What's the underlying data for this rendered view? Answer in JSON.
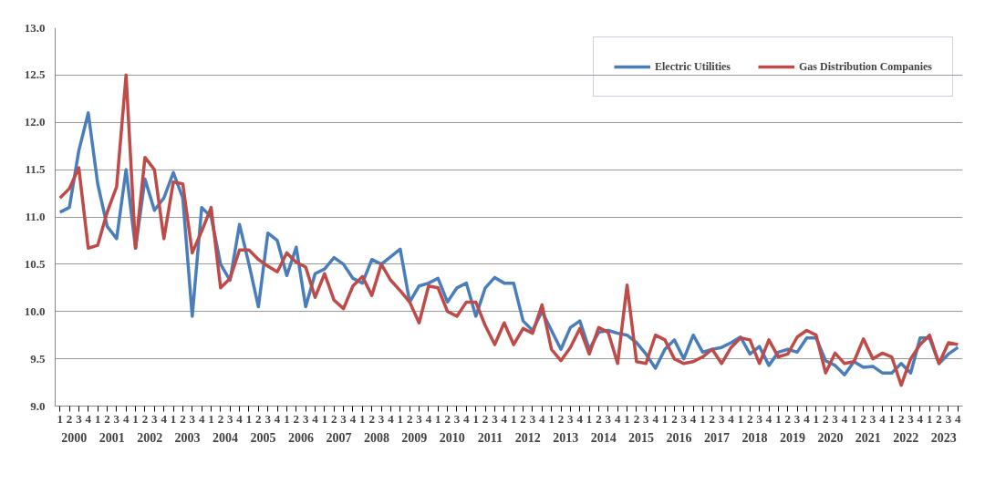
{
  "chart_data": {
    "type": "line",
    "categories": [
      "1",
      "2",
      "3",
      "4",
      "1",
      "2",
      "3",
      "4",
      "1",
      "2",
      "3",
      "4",
      "1",
      "2",
      "3",
      "4",
      "1",
      "2",
      "3",
      "4",
      "1",
      "2",
      "3",
      "4",
      "1",
      "2",
      "3",
      "4",
      "1",
      "2",
      "3",
      "4",
      "1",
      "2",
      "3",
      "4",
      "1",
      "2",
      "3",
      "4",
      "1",
      "2",
      "3",
      "4",
      "1",
      "2",
      "3",
      "4",
      "1",
      "2",
      "3",
      "4",
      "1",
      "2",
      "3",
      "4",
      "1",
      "2",
      "3",
      "4",
      "1",
      "2",
      "3",
      "4",
      "1",
      "2",
      "3",
      "4",
      "1",
      "2",
      "3",
      "4",
      "1",
      "2",
      "3",
      "4",
      "1",
      "2",
      "3",
      "4",
      "1",
      "2",
      "3",
      "4",
      "1",
      "2",
      "3",
      "4",
      "1",
      "2",
      "3",
      "4",
      "1",
      "2",
      "3",
      "4"
    ],
    "annotations": [
      "2000",
      "2001",
      "2002",
      "2003",
      "2004",
      "2005",
      "2006",
      "2007",
      "2008",
      "2009",
      "2010",
      "2011",
      "2012",
      "2013",
      "2014",
      "2015",
      "2016",
      "2017",
      "2018",
      "2019",
      "2020",
      "2021",
      "2022",
      "2023"
    ],
    "series": [
      {
        "name": "Electric Utilities",
        "color": "#4a7ebb",
        "values": [
          11.05,
          11.1,
          11.7,
          12.1,
          11.35,
          10.9,
          10.77,
          11.5,
          10.67,
          11.4,
          11.07,
          11.2,
          11.47,
          11.2,
          9.95,
          11.1,
          11.0,
          10.5,
          10.33,
          10.92,
          10.5,
          10.05,
          10.83,
          10.75,
          10.38,
          10.68,
          10.05,
          10.4,
          10.45,
          10.57,
          10.5,
          10.35,
          10.3,
          10.55,
          10.5,
          10.58,
          10.66,
          10.1,
          10.27,
          10.3,
          10.35,
          10.1,
          10.25,
          10.3,
          9.95,
          10.25,
          10.36,
          10.3,
          10.3,
          9.9,
          9.8,
          10.0,
          9.8,
          9.6,
          9.83,
          9.9,
          9.6,
          9.78,
          9.8,
          9.77,
          9.75,
          9.67,
          9.55,
          9.4,
          9.6,
          9.7,
          9.5,
          9.75,
          9.57,
          9.6,
          9.62,
          9.67,
          9.73,
          9.55,
          9.63,
          9.43,
          9.57,
          9.6,
          9.57,
          9.72,
          9.72,
          9.48,
          9.43,
          9.33,
          9.47,
          9.41,
          9.42,
          9.35,
          9.35,
          9.45,
          9.35,
          9.72,
          9.72,
          9.45,
          9.55,
          9.62
        ]
      },
      {
        "name": "Gas Distribution Companies",
        "color": "#be4b48",
        "values": [
          11.2,
          11.3,
          11.52,
          10.67,
          10.7,
          11.05,
          11.32,
          12.5,
          10.67,
          11.63,
          11.5,
          10.77,
          11.37,
          11.35,
          10.62,
          10.85,
          11.1,
          10.25,
          10.35,
          10.65,
          10.65,
          10.55,
          10.48,
          10.42,
          10.62,
          10.52,
          10.47,
          10.15,
          10.4,
          10.12,
          10.03,
          10.27,
          10.37,
          10.17,
          10.5,
          10.33,
          10.22,
          10.1,
          9.88,
          10.27,
          10.25,
          10.0,
          9.95,
          10.1,
          10.1,
          9.85,
          9.65,
          9.88,
          9.65,
          9.82,
          9.77,
          10.07,
          9.6,
          9.48,
          9.62,
          9.82,
          9.55,
          9.83,
          9.78,
          9.45,
          10.28,
          9.47,
          9.45,
          9.75,
          9.7,
          9.5,
          9.45,
          9.47,
          9.52,
          9.6,
          9.45,
          9.62,
          9.72,
          9.7,
          9.45,
          9.7,
          9.52,
          9.55,
          9.73,
          9.8,
          9.75,
          9.35,
          9.56,
          9.45,
          9.47,
          9.71,
          9.5,
          9.56,
          9.52,
          9.22,
          9.5,
          9.65,
          9.75,
          9.45,
          9.67,
          9.65
        ]
      }
    ],
    "ylim": [
      9.0,
      13.0
    ],
    "yticks": [
      {
        "value": 9.0,
        "label": "9.0"
      },
      {
        "value": 9.5,
        "label": "9.5"
      },
      {
        "value": 10.0,
        "label": "10.0"
      },
      {
        "value": 10.5,
        "label": "10.5"
      },
      {
        "value": 11.0,
        "label": "11.0"
      },
      {
        "value": 11.5,
        "label": "11.5"
      },
      {
        "value": 12.0,
        "label": "12.0"
      },
      {
        "value": 12.5,
        "label": "12.5"
      },
      {
        "value": 13.0,
        "label": "13.0"
      }
    ],
    "grid": "y",
    "legend": "top right",
    "marker": "none",
    "line_style": "solid"
  }
}
